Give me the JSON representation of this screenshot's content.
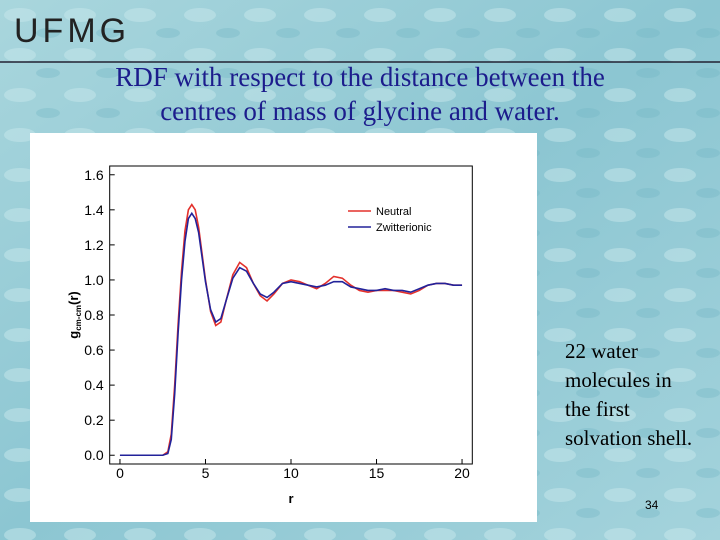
{
  "logo": "UFMG",
  "title_lines": [
    "RDF with respect to the distance between the",
    "centres of mass of glycine and water."
  ],
  "note_lines": [
    "22 water",
    "molecules in",
    "the first",
    "solvation shell."
  ],
  "page_number": "34",
  "chart_data": {
    "type": "line",
    "xlabel": "r",
    "ylabel": [
      "g",
      "cm-cm",
      "(r)"
    ],
    "x": [
      0,
      2.5,
      2.8,
      3.0,
      3.2,
      3.4,
      3.6,
      3.8,
      4.0,
      4.2,
      4.4,
      4.6,
      4.8,
      5.0,
      5.3,
      5.6,
      5.9,
      6.2,
      6.6,
      7.0,
      7.4,
      7.8,
      8.2,
      8.6,
      9.0,
      9.5,
      10,
      10.5,
      11,
      11.5,
      12,
      12.5,
      13,
      13.5,
      14,
      14.5,
      15,
      15.5,
      16,
      16.5,
      17,
      17.5,
      18,
      18.5,
      19,
      19.5,
      20
    ],
    "series": [
      {
        "name": "Neutral",
        "color": "#e3302b",
        "values": [
          0,
          0,
          0.02,
          0.12,
          0.4,
          0.75,
          1.05,
          1.28,
          1.4,
          1.43,
          1.4,
          1.3,
          1.15,
          1.0,
          0.82,
          0.74,
          0.76,
          0.88,
          1.03,
          1.1,
          1.07,
          0.98,
          0.91,
          0.88,
          0.92,
          0.98,
          1.0,
          0.99,
          0.97,
          0.95,
          0.98,
          1.02,
          1.01,
          0.97,
          0.94,
          0.93,
          0.94,
          0.94,
          0.94,
          0.93,
          0.92,
          0.94,
          0.97,
          0.98,
          0.98,
          0.97,
          0.97
        ]
      },
      {
        "name": "Zwitterionic",
        "color": "#22229a",
        "values": [
          0,
          0,
          0.01,
          0.09,
          0.35,
          0.7,
          1.0,
          1.22,
          1.35,
          1.38,
          1.35,
          1.27,
          1.13,
          0.99,
          0.83,
          0.76,
          0.78,
          0.88,
          1.01,
          1.07,
          1.05,
          0.98,
          0.92,
          0.9,
          0.93,
          0.98,
          0.99,
          0.98,
          0.97,
          0.96,
          0.97,
          0.99,
          0.99,
          0.96,
          0.95,
          0.94,
          0.94,
          0.95,
          0.94,
          0.94,
          0.93,
          0.95,
          0.97,
          0.98,
          0.98,
          0.97,
          0.97
        ]
      }
    ],
    "xlim": [
      -0.6,
      20.6
    ],
    "ylim": [
      -0.05,
      1.65
    ],
    "xticks": [
      0,
      5,
      10,
      15,
      20
    ],
    "yticks": [
      {
        "value": 0,
        "label": "0.0"
      },
      {
        "value": 0.2,
        "label": "0.2"
      },
      {
        "value": 0.4,
        "label": "0.4"
      },
      {
        "value": 0.6,
        "label": "0.6"
      },
      {
        "value": 0.8,
        "label": "0.8"
      },
      {
        "value": 1.0,
        "label": "1.0"
      },
      {
        "value": 1.2,
        "label": "1.2"
      },
      {
        "value": 1.4,
        "label": "1.4"
      },
      {
        "value": 1.6,
        "label": "1.6"
      }
    ],
    "legend": "upper right",
    "grid": false
  }
}
